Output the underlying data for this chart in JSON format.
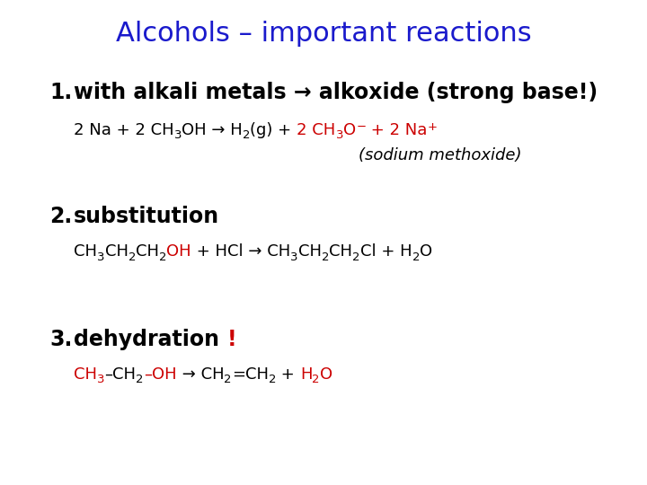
{
  "title": "Alcohols – important reactions",
  "title_color": "#1a1acc",
  "title_fontsize": 22,
  "background_color": "#ffffff",
  "font_family": "Comic Sans MS",
  "item1_heading": "with alkali metals → alkoxide (strong base!)",
  "item2_heading": "substitution",
  "item3_heading": "dehydration ",
  "item3_exclaim": "!",
  "heading_fontsize": 17,
  "sub_fontsize": 13,
  "sub_fontsize_script": 9.5,
  "item1_sub1_parts": [
    {
      "text": "2 Na + 2 CH",
      "color": "#000000"
    },
    {
      "text": "3",
      "color": "#000000",
      "sub": true
    },
    {
      "text": "OH → H",
      "color": "#000000"
    },
    {
      "text": "2",
      "color": "#000000",
      "sub": true
    },
    {
      "text": "(g) + ",
      "color": "#000000"
    },
    {
      "text": "2 CH",
      "color": "#cc0000"
    },
    {
      "text": "3",
      "color": "#cc0000",
      "sub": true
    },
    {
      "text": "O",
      "color": "#cc0000"
    },
    {
      "text": "−",
      "color": "#cc0000",
      "sup": true
    },
    {
      "text": " + 2 Na",
      "color": "#cc0000"
    },
    {
      "text": "+",
      "color": "#cc0000",
      "sup": true
    }
  ],
  "item1_sub2": "(sodium methoxide)",
  "item2_sub1_parts": [
    {
      "text": "CH",
      "color": "#000000"
    },
    {
      "text": "3",
      "color": "#000000",
      "sub": true
    },
    {
      "text": "CH",
      "color": "#000000"
    },
    {
      "text": "2",
      "color": "#000000",
      "sub": true
    },
    {
      "text": "CH",
      "color": "#000000"
    },
    {
      "text": "2",
      "color": "#000000",
      "sub": true
    },
    {
      "text": "OH",
      "color": "#cc0000"
    },
    {
      "text": " + HCl → CH",
      "color": "#000000"
    },
    {
      "text": "3",
      "color": "#000000",
      "sub": true
    },
    {
      "text": "CH",
      "color": "#000000"
    },
    {
      "text": "2",
      "color": "#000000",
      "sub": true
    },
    {
      "text": "CH",
      "color": "#000000"
    },
    {
      "text": "2",
      "color": "#000000",
      "sub": true
    },
    {
      "text": "Cl + H",
      "color": "#000000"
    },
    {
      "text": "2",
      "color": "#000000",
      "sub": true
    },
    {
      "text": "O",
      "color": "#000000"
    }
  ],
  "item3_sub1_parts": [
    {
      "text": "CH",
      "color": "#cc0000"
    },
    {
      "text": "3",
      "color": "#cc0000",
      "sub": true
    },
    {
      "text": "–CH",
      "color": "#000000"
    },
    {
      "text": "2",
      "color": "#000000",
      "sub": true
    },
    {
      "text": "–OH",
      "color": "#cc0000"
    },
    {
      "text": " → CH",
      "color": "#000000"
    },
    {
      "text": "2",
      "color": "#000000",
      "sub": true
    },
    {
      "text": "=CH",
      "color": "#000000"
    },
    {
      "text": "2",
      "color": "#000000",
      "sub": true
    },
    {
      "text": " + ",
      "color": "#000000"
    },
    {
      "text": "H",
      "color": "#cc0000"
    },
    {
      "text": "2",
      "color": "#cc0000",
      "sub": true
    },
    {
      "text": "O",
      "color": "#cc0000"
    }
  ]
}
